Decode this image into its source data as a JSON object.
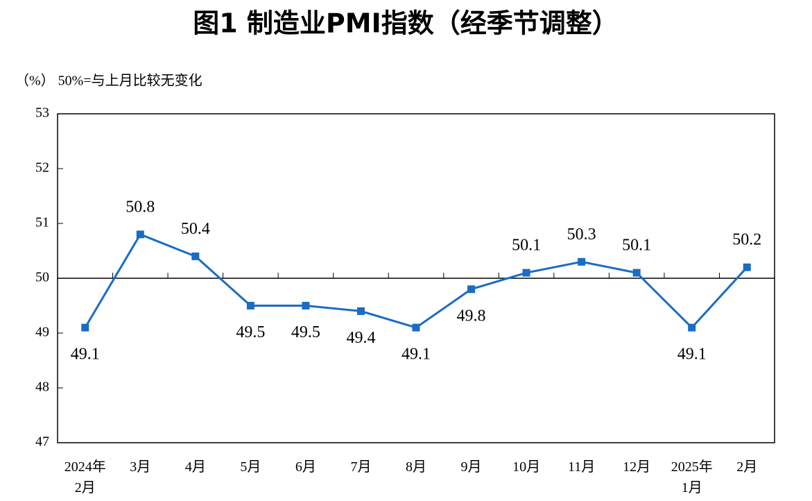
{
  "chart_data": {
    "type": "line",
    "title": "图1  制造业PMI指数（经季节调整）",
    "y_axis_note": "（%）  50%=与上月比较无变化",
    "categories": [
      "2024年\n2月",
      "3月",
      "4月",
      "5月",
      "6月",
      "7月",
      "8月",
      "9月",
      "10月",
      "11月",
      "12月",
      "2025年\n1月",
      "2月"
    ],
    "values": [
      49.1,
      50.8,
      50.4,
      49.5,
      49.5,
      49.4,
      49.1,
      49.8,
      50.1,
      50.3,
      50.1,
      49.1,
      50.2
    ],
    "color": "#1a6cc4",
    "ylim": [
      47,
      53
    ],
    "yticks": [
      47,
      48,
      49,
      50,
      51,
      52,
      53
    ],
    "reference_line": 50
  }
}
